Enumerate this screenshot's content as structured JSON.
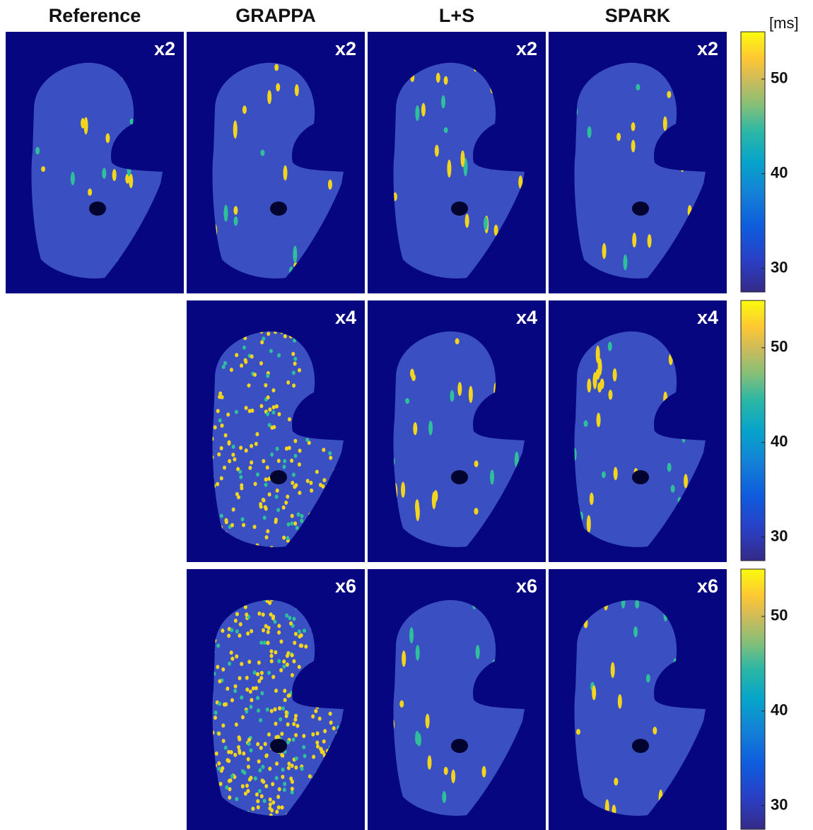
{
  "columns": [
    "Reference",
    "GRAPPA",
    "L+S",
    "SPARK"
  ],
  "rows": [
    {
      "label": "x2"
    },
    {
      "label": "x4"
    },
    {
      "label": "x6"
    }
  ],
  "colorbar": {
    "unit": "[ms]",
    "lim": [
      27.5,
      55
    ],
    "ticks": [
      30,
      40,
      50
    ]
  }
}
